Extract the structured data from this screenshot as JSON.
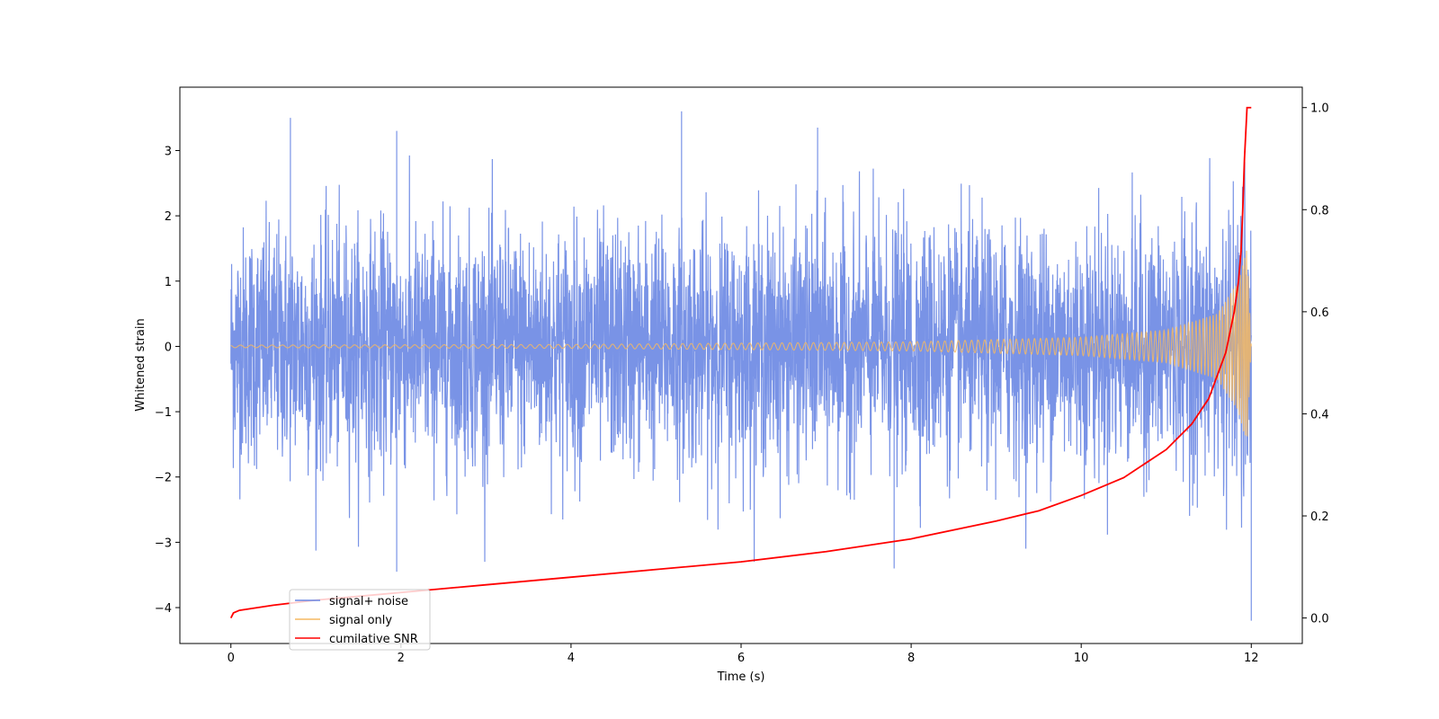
{
  "chart_data": {
    "type": "line",
    "title": "",
    "xlabel": "Time (s)",
    "ylabel": "Whitened strain",
    "y2label": "",
    "xlim": [
      -0.6,
      12.6
    ],
    "ylim": [
      -4.55,
      3.97
    ],
    "y2lim": [
      -0.05,
      1.04
    ],
    "xticks": [
      0,
      2,
      4,
      6,
      8,
      10,
      12
    ],
    "yticks": [
      -4,
      -3,
      -2,
      -1,
      0,
      1,
      2,
      3
    ],
    "y2ticks": [
      0.0,
      0.2,
      0.4,
      0.6,
      0.8,
      1.0
    ],
    "grid": false,
    "legend_position": "lower-left",
    "series": [
      {
        "name": "signal+ noise",
        "axis": "left",
        "color": "#6a87e3",
        "style": "noisy-band",
        "noise_sigma": 0.9,
        "x_range": [
          0,
          12
        ],
        "notable_values": [
          {
            "x": 0.7,
            "y": 3.5
          },
          {
            "x": 1.95,
            "y": 3.3
          },
          {
            "x": 5.3,
            "y": 3.6
          },
          {
            "x": 6.9,
            "y": 3.35
          },
          {
            "x": 1.95,
            "y": -3.45
          },
          {
            "x": 7.8,
            "y": -3.4
          },
          {
            "x": 12.0,
            "y": -4.2
          }
        ]
      },
      {
        "name": "signal only",
        "axis": "left",
        "color": "#f5b862",
        "style": "chirp",
        "x_range": [
          0,
          12
        ],
        "envelope": [
          {
            "x": 0,
            "y": 0.02
          },
          {
            "x": 4,
            "y": 0.03
          },
          {
            "x": 8,
            "y": 0.07
          },
          {
            "x": 10,
            "y": 0.14
          },
          {
            "x": 11,
            "y": 0.25
          },
          {
            "x": 11.6,
            "y": 0.5
          },
          {
            "x": 11.85,
            "y": 1.0
          },
          {
            "x": 11.95,
            "y": 1.5
          },
          {
            "x": 12.0,
            "y": 0.0
          }
        ]
      },
      {
        "name": "cumilative SNR",
        "axis": "right",
        "color": "#ff0000",
        "style": "line",
        "x": [
          0,
          0.03,
          0.1,
          0.5,
          1,
          2,
          3,
          4,
          5,
          6,
          7,
          8,
          9,
          9.5,
          10,
          10.5,
          11,
          11.3,
          11.5,
          11.7,
          11.8,
          11.85,
          11.88,
          11.9,
          11.92,
          11.95,
          12.0
        ],
        "y": [
          0.0,
          0.01,
          0.015,
          0.025,
          0.035,
          0.05,
          0.065,
          0.08,
          0.095,
          0.11,
          0.13,
          0.155,
          0.19,
          0.21,
          0.24,
          0.275,
          0.33,
          0.38,
          0.43,
          0.52,
          0.6,
          0.66,
          0.72,
          0.8,
          0.9,
          1.0,
          1.0
        ]
      }
    ]
  }
}
